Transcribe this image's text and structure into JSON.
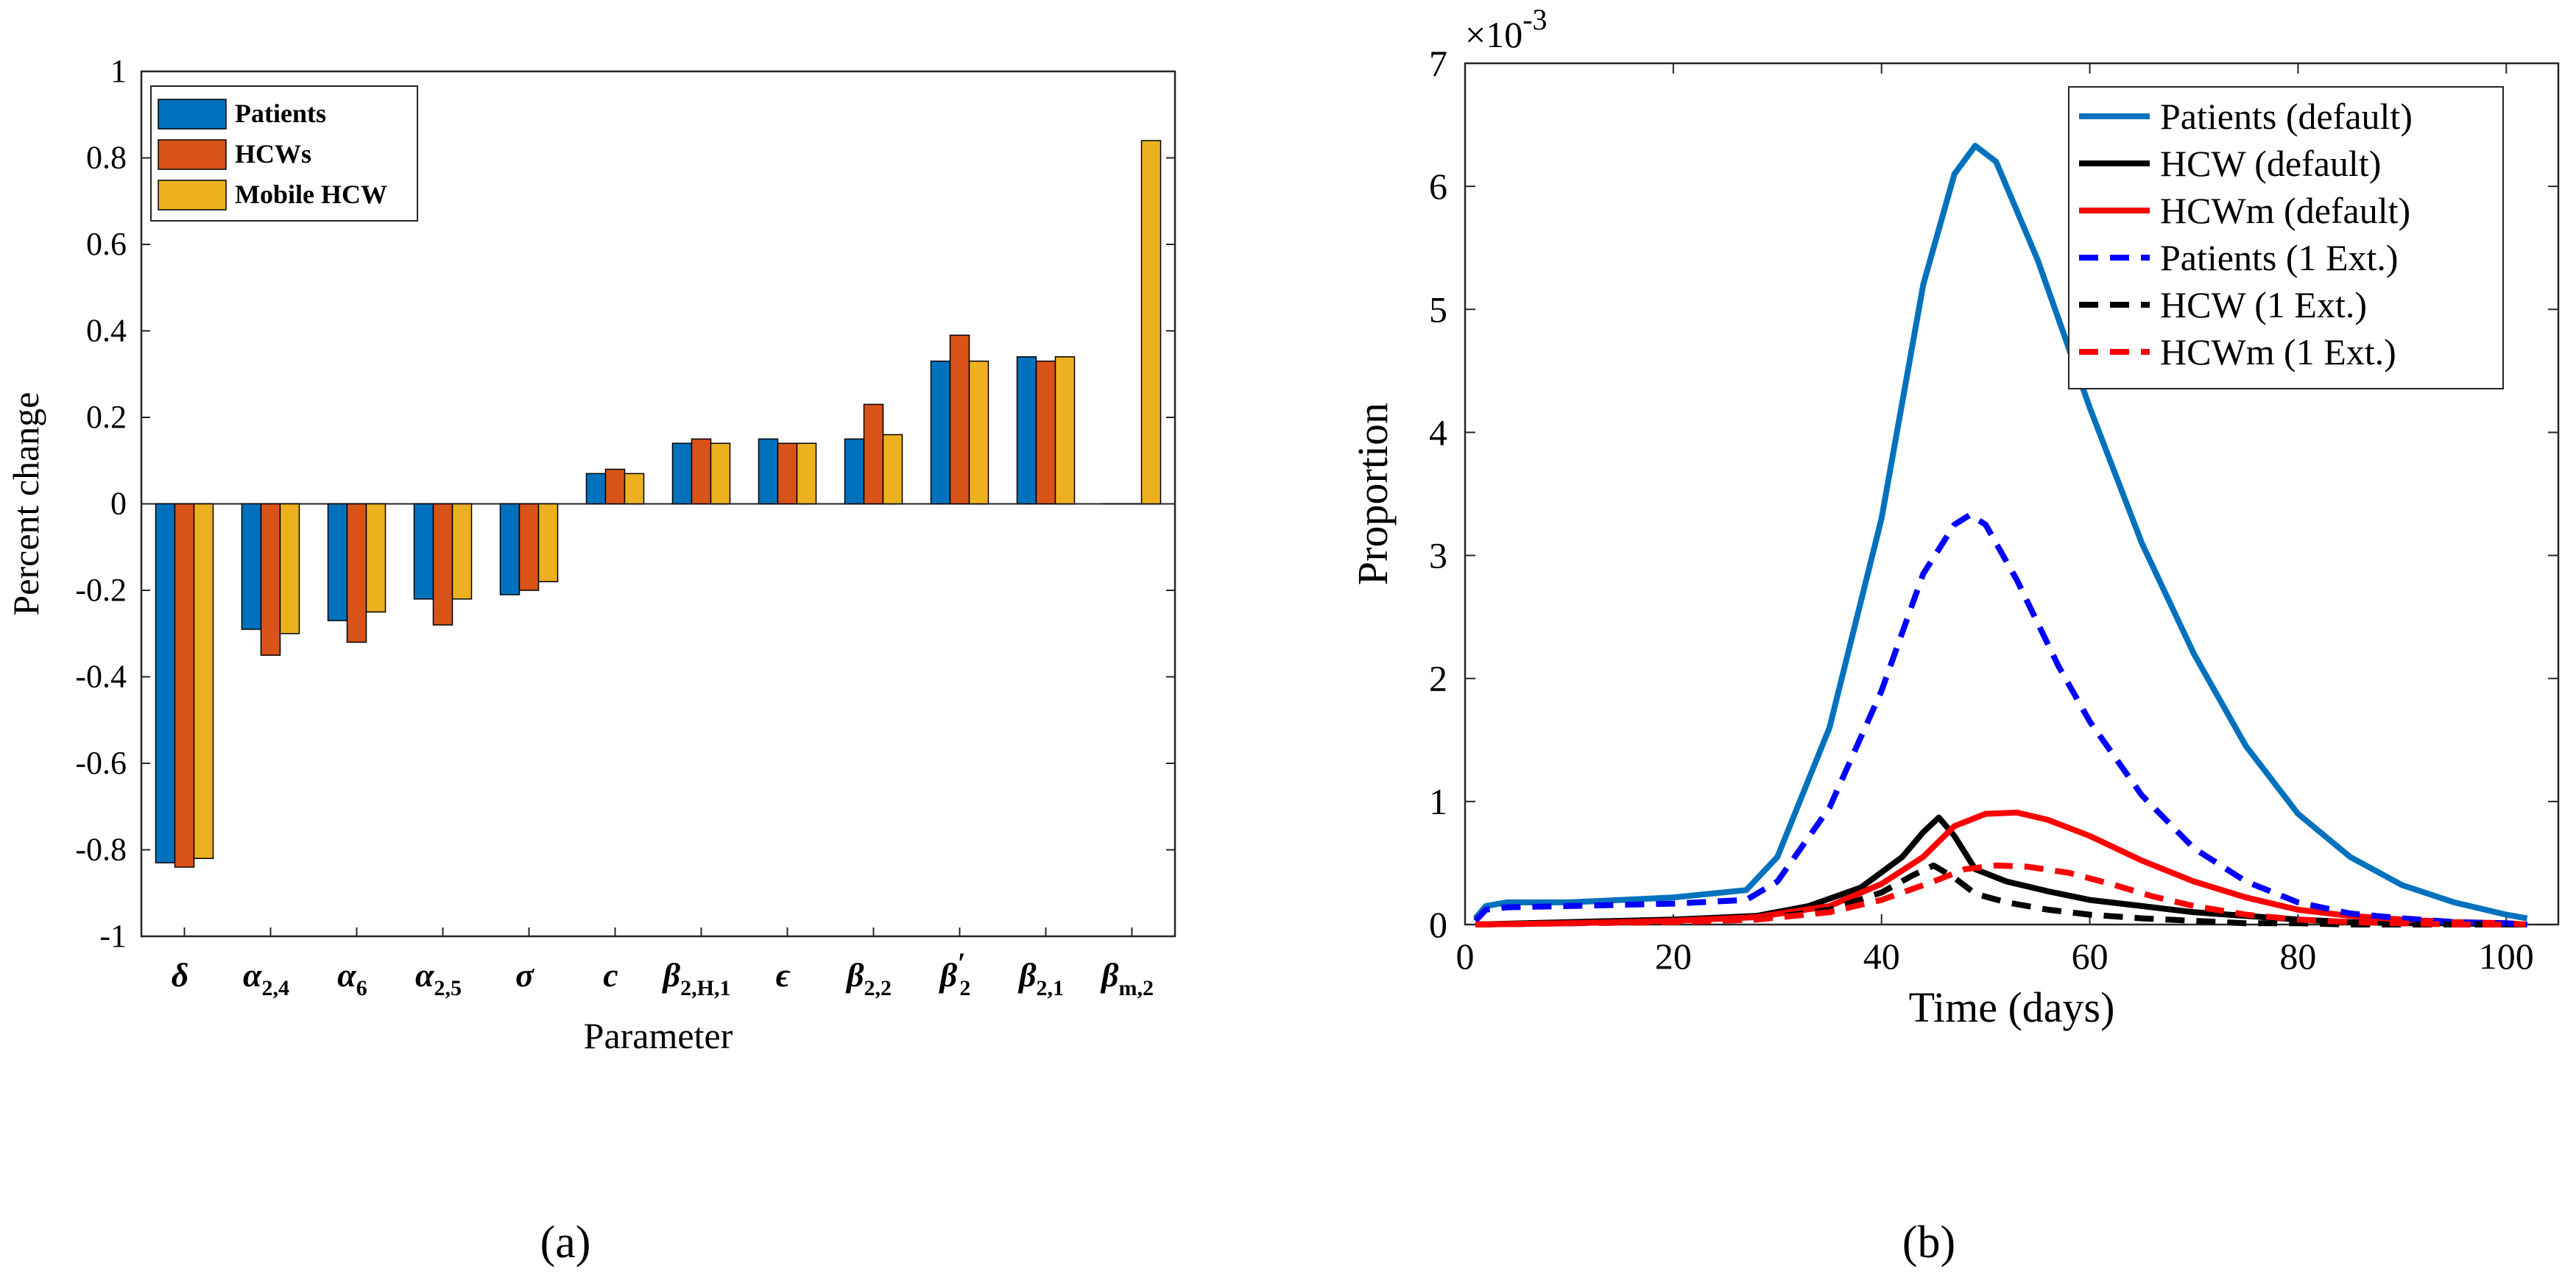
{
  "chart_data": [
    {
      "type": "bar",
      "panel_label": "(a)",
      "xlabel": "Parameter",
      "ylabel": "Percent change",
      "ylim": [
        -1,
        1
      ],
      "yticks": [
        "1",
        "0.8",
        "0.6",
        "0.4",
        "0.2",
        "0",
        "-0.2",
        "-0.4",
        "-0.6",
        "-0.8",
        "-1"
      ],
      "grid": false,
      "legend_position": "top-left",
      "categories": [
        {
          "sym": "δ",
          "sub": "",
          "prime": ""
        },
        {
          "sym": "α",
          "sub": "2,4",
          "prime": ""
        },
        {
          "sym": "α",
          "sub": "6",
          "prime": ""
        },
        {
          "sym": "α",
          "sub": "2,5",
          "prime": ""
        },
        {
          "sym": "σ",
          "sub": "",
          "prime": ""
        },
        {
          "sym": "c",
          "sub": "",
          "prime": ""
        },
        {
          "sym": "β",
          "sub": "2,H,1",
          "prime": ""
        },
        {
          "sym": "ϵ",
          "sub": "",
          "prime": ""
        },
        {
          "sym": "β",
          "sub": "2,2",
          "prime": ""
        },
        {
          "sym": "β",
          "sub": "2",
          "prime": "′"
        },
        {
          "sym": "β",
          "sub": "2,1",
          "prime": ""
        },
        {
          "sym": "β",
          "sub": "m,2",
          "prime": ""
        }
      ],
      "series": [
        {
          "name": "Patients",
          "color": "#0072BD",
          "values": [
            -0.83,
            -0.29,
            -0.27,
            -0.22,
            -0.21,
            0.07,
            0.14,
            0.15,
            0.15,
            0.33,
            0.34,
            0.0
          ]
        },
        {
          "name": "HCWs",
          "color": "#D95319",
          "values": [
            -0.84,
            -0.35,
            -0.32,
            -0.28,
            -0.2,
            0.08,
            0.15,
            0.14,
            0.23,
            0.39,
            0.33,
            0.0
          ]
        },
        {
          "name": "Mobile HCW",
          "color": "#EDB120",
          "values": [
            -0.82,
            -0.3,
            -0.25,
            -0.22,
            -0.18,
            0.07,
            0.14,
            0.14,
            0.16,
            0.33,
            0.34,
            0.84
          ]
        }
      ]
    },
    {
      "type": "line",
      "panel_label": "(b)",
      "xlabel": "Time (days)",
      "ylabel": "Proportion",
      "xlim": [
        0,
        105
      ],
      "ylim": [
        0,
        7
      ],
      "xticks": [
        "0",
        "20",
        "40",
        "60",
        "80",
        "100"
      ],
      "yticks": [
        "0",
        "1",
        "2",
        "3",
        "4",
        "5",
        "6",
        "7"
      ],
      "y_multiplier_base": "×10",
      "y_multiplier_exp": "-3",
      "legend_position": "top-right",
      "grid": false,
      "series": [
        {
          "name": "Patients (default)",
          "color": "#0072BD",
          "dash": "solid",
          "x": [
            1,
            2,
            4,
            10,
            20,
            27,
            30,
            35,
            40,
            44,
            47,
            49,
            51,
            55,
            60,
            65,
            70,
            75,
            80,
            85,
            90,
            95,
            100,
            102
          ],
          "y": [
            0.05,
            0.15,
            0.18,
            0.18,
            0.22,
            0.28,
            0.55,
            1.6,
            3.3,
            5.2,
            6.1,
            6.33,
            6.2,
            5.4,
            4.2,
            3.1,
            2.2,
            1.45,
            0.9,
            0.55,
            0.32,
            0.18,
            0.08,
            0.05
          ]
        },
        {
          "name": "HCW (default)",
          "color": "#000000",
          "dash": "solid",
          "x": [
            1,
            10,
            20,
            28,
            33,
            38,
            42,
            44,
            45.5,
            47,
            49,
            52,
            56,
            60,
            65,
            70,
            75,
            80,
            85,
            90,
            95,
            100,
            102
          ],
          "y": [
            0.0,
            0.02,
            0.04,
            0.07,
            0.15,
            0.3,
            0.55,
            0.75,
            0.87,
            0.72,
            0.45,
            0.35,
            0.27,
            0.2,
            0.15,
            0.1,
            0.07,
            0.04,
            0.02,
            0.01,
            0.01,
            0.0,
            0.0
          ]
        },
        {
          "name": "HCWm (default)",
          "color": "#FF0000",
          "dash": "solid",
          "x": [
            1,
            10,
            20,
            28,
            35,
            40,
            44,
            47,
            50,
            53,
            56,
            60,
            65,
            70,
            75,
            80,
            85,
            90,
            95,
            100,
            102
          ],
          "y": [
            0.0,
            0.01,
            0.03,
            0.06,
            0.15,
            0.33,
            0.55,
            0.8,
            0.9,
            0.91,
            0.85,
            0.72,
            0.52,
            0.35,
            0.22,
            0.12,
            0.07,
            0.04,
            0.02,
            0.01,
            0.0
          ]
        },
        {
          "name": "Patients (1 Ext.)",
          "color": "#0000FF",
          "dash": "dashed",
          "x": [
            1,
            2,
            4,
            10,
            20,
            27,
            30,
            35,
            40,
            44,
            47,
            48.5,
            50,
            53,
            57,
            60,
            65,
            70,
            75,
            80,
            85,
            90,
            95,
            100,
            102
          ],
          "y": [
            0.03,
            0.12,
            0.14,
            0.15,
            0.17,
            0.2,
            0.35,
            0.95,
            1.9,
            2.85,
            3.25,
            3.33,
            3.25,
            2.8,
            2.1,
            1.65,
            1.05,
            0.62,
            0.35,
            0.18,
            0.09,
            0.05,
            0.02,
            0.01,
            0.0
          ]
        },
        {
          "name": "HCW (1 Ext.)",
          "color": "#000000",
          "dash": "dashed",
          "x": [
            1,
            10,
            20,
            28,
            35,
            40,
            43,
            45,
            47,
            49,
            52,
            56,
            60,
            65,
            70,
            75,
            80,
            85,
            90,
            95,
            100
          ],
          "y": [
            0.0,
            0.01,
            0.02,
            0.04,
            0.12,
            0.26,
            0.4,
            0.48,
            0.38,
            0.25,
            0.18,
            0.12,
            0.08,
            0.05,
            0.03,
            0.01,
            0.01,
            0.0,
            0.0,
            0.0,
            0.0
          ]
        },
        {
          "name": "HCWm (1 Ext.)",
          "color": "#FF0000",
          "dash": "dashed",
          "x": [
            1,
            10,
            20,
            28,
            35,
            40,
            45,
            48,
            51,
            54,
            58,
            62,
            66,
            70,
            75,
            80,
            85,
            90,
            95,
            100
          ],
          "y": [
            0.0,
            0.01,
            0.02,
            0.04,
            0.1,
            0.2,
            0.35,
            0.45,
            0.48,
            0.47,
            0.42,
            0.33,
            0.23,
            0.15,
            0.08,
            0.04,
            0.02,
            0.01,
            0.0,
            0.0
          ]
        }
      ]
    }
  ]
}
